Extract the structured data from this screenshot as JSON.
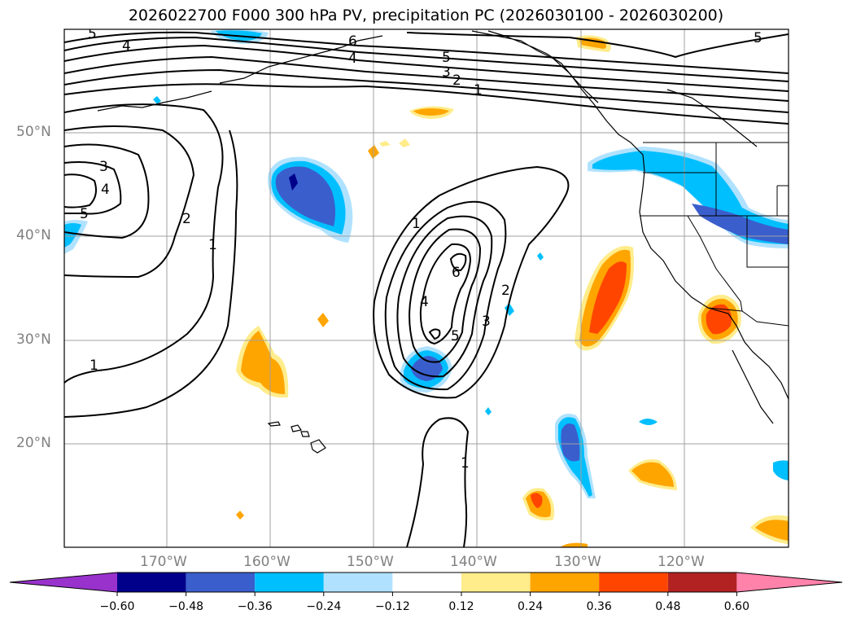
{
  "title": "2026022700 F000 300 hPa PV, precipitation PC (2026030100 - 2026030200)",
  "lat_labels": [
    "50°N",
    "40°N",
    "30°N",
    "20°N"
  ],
  "lon_labels": [
    "170°W",
    "160°W",
    "150°W",
    "140°W",
    "130°W",
    "120°W"
  ],
  "colorbar": {
    "ticks": [
      "−0.60",
      "−0.48",
      "−0.36",
      "−0.24",
      "−0.12",
      "0.12",
      "0.24",
      "0.36",
      "0.48",
      "0.60"
    ],
    "colors": [
      "#9932cc",
      "#00008b",
      "#3a5fcd",
      "#00bfff",
      "#b0e2ff",
      "#ffffff",
      "#ffec8b",
      "#ffa500",
      "#ff4500",
      "#b22222",
      "#ff82ab"
    ]
  },
  "contour_labels": [
    "5",
    "4",
    "6",
    "4",
    "5",
    "3",
    "2",
    "1",
    "5",
    "3",
    "4",
    "5",
    "2",
    "1",
    "1",
    "1",
    "6",
    "4",
    "2",
    "3",
    "5",
    "1"
  ],
  "fill_colors": {
    "light_blue": "#b0e2ff",
    "blue": "#00bfff",
    "mid_blue": "#3a5fcd",
    "dark_blue": "#00008b",
    "light_yellow": "#ffec8b",
    "orange": "#ffa500",
    "red_orange": "#ff4500"
  }
}
